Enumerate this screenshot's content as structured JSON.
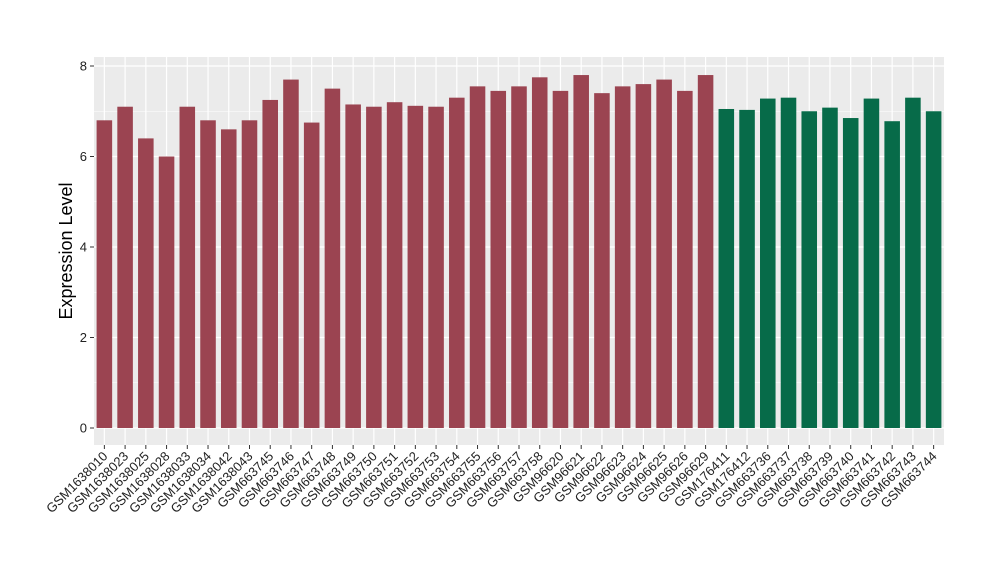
{
  "chart_data": {
    "type": "bar",
    "title": "",
    "xlabel": "",
    "ylabel": "Expression Level",
    "ylim": [
      0,
      8.2
    ],
    "yticks": [
      0,
      2,
      4,
      6,
      8
    ],
    "grid": true,
    "legend": "none",
    "colors": {
      "panel": "#ebebeb",
      "grid": "#ffffff",
      "red": "#9b4451",
      "green": "#076b49"
    },
    "categories": [
      "GSM1638010",
      "GSM1638023",
      "GSM1638025",
      "GSM1638028",
      "GSM1638033",
      "GSM1638034",
      "GSM1638042",
      "GSM1638043",
      "GSM663745",
      "GSM663746",
      "GSM663747",
      "GSM663748",
      "GSM663749",
      "GSM663750",
      "GSM663751",
      "GSM663752",
      "GSM663753",
      "GSM663754",
      "GSM663755",
      "GSM663756",
      "GSM663757",
      "GSM663758",
      "GSM96620",
      "GSM96621",
      "GSM96622",
      "GSM96623",
      "GSM96624",
      "GSM96625",
      "GSM96626",
      "GSM96629",
      "GSM176411",
      "GSM176412",
      "GSM663736",
      "GSM663737",
      "GSM663738",
      "GSM663739",
      "GSM663740",
      "GSM663741",
      "GSM663742",
      "GSM663743",
      "GSM663744"
    ],
    "values": [
      6.8,
      7.1,
      6.4,
      6.0,
      7.1,
      6.8,
      6.6,
      6.8,
      7.25,
      7.7,
      6.75,
      7.5,
      7.15,
      7.1,
      7.2,
      7.12,
      7.1,
      7.3,
      7.55,
      7.45,
      7.55,
      7.75,
      7.45,
      7.8,
      7.4,
      7.55,
      7.6,
      7.7,
      7.45,
      7.8,
      7.05,
      7.03,
      7.28,
      7.3,
      7.0,
      7.08,
      6.85,
      7.28,
      6.78,
      7.3,
      7.0
    ],
    "bar_colors": [
      "red",
      "red",
      "red",
      "red",
      "red",
      "red",
      "red",
      "red",
      "red",
      "red",
      "red",
      "red",
      "red",
      "red",
      "red",
      "red",
      "red",
      "red",
      "red",
      "red",
      "red",
      "red",
      "red",
      "red",
      "red",
      "red",
      "red",
      "red",
      "red",
      "red",
      "green",
      "green",
      "green",
      "green",
      "green",
      "green",
      "green",
      "green",
      "green",
      "green",
      "green"
    ]
  }
}
